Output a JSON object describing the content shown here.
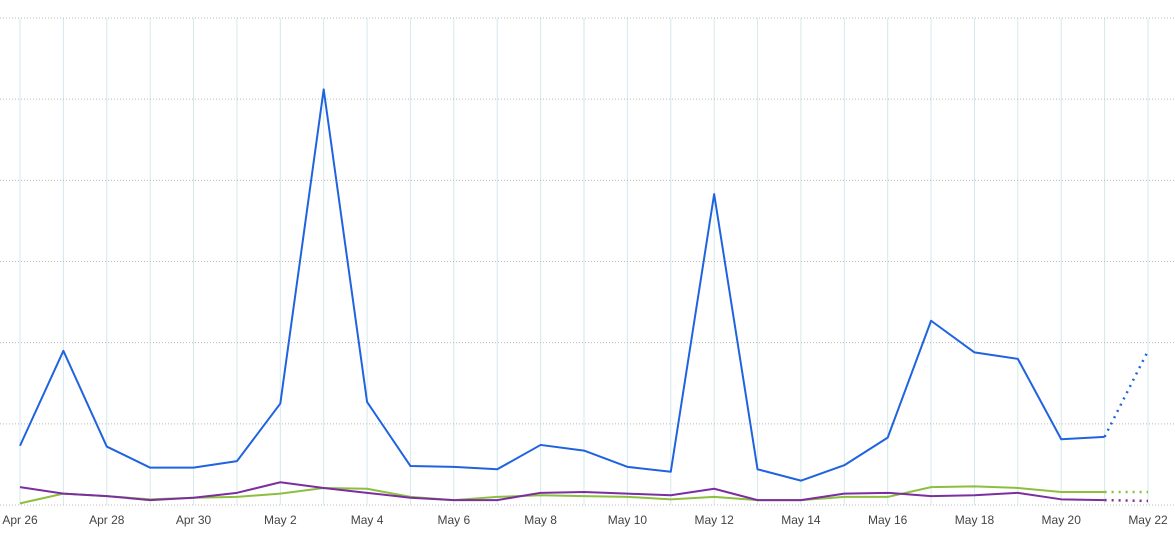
{
  "chart_data": {
    "type": "line",
    "categories": [
      "Apr 26",
      null,
      "Apr 28",
      null,
      "Apr 30",
      null,
      "May 2",
      null,
      "May 4",
      null,
      "May 6",
      null,
      "May 8",
      null,
      "May 10",
      null,
      "May 12",
      null,
      "May 14",
      null,
      "May 16",
      null,
      "May 18",
      null,
      "May 20",
      null,
      "May 22"
    ],
    "series": [
      {
        "color": "#1f63e0",
        "values": [
          0.73,
          1.9,
          0.72,
          0.46,
          0.46,
          0.54,
          1.25,
          5.12,
          1.27,
          0.48,
          0.47,
          0.44,
          0.74,
          0.67,
          0.47,
          0.41,
          3.83,
          0.44,
          0.3,
          0.49,
          0.83,
          2.27,
          1.88,
          1.8,
          0.81,
          0.84,
          1.9
        ]
      },
      {
        "color": "#8cbf3f",
        "values": [
          0.02,
          0.14,
          0.11,
          0.07,
          0.09,
          0.1,
          0.14,
          0.21,
          0.2,
          0.1,
          0.06,
          0.1,
          0.12,
          0.11,
          0.1,
          0.07,
          0.1,
          0.06,
          0.06,
          0.1,
          0.1,
          0.22,
          0.23,
          0.21,
          0.16,
          0.16,
          0.16
        ]
      },
      {
        "color": "#7b2ea0",
        "values": [
          0.22,
          0.14,
          0.11,
          0.06,
          0.09,
          0.15,
          0.28,
          0.21,
          0.15,
          0.09,
          0.06,
          0.06,
          0.15,
          0.16,
          0.14,
          0.12,
          0.2,
          0.06,
          0.06,
          0.14,
          0.15,
          0.11,
          0.12,
          0.15,
          0.07,
          0.06,
          0.05
        ]
      }
    ],
    "ylim": [
      0,
      6
    ],
    "yticks": [
      0,
      1,
      2,
      3,
      4,
      5,
      6
    ],
    "show_ytick_labels": false,
    "grid": true,
    "dotted_segment": "last"
  }
}
